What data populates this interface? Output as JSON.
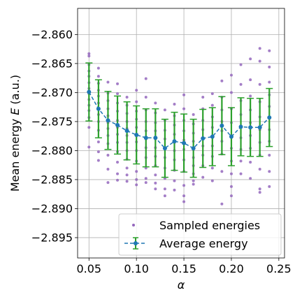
{
  "chart_data": {
    "type": "scatter",
    "title": "",
    "xlabel": "α",
    "ylabel_prefix": "Mean energy ",
    "ylabel_var": "E",
    "ylabel_suffix": " (a.u.)",
    "xlim": [
      0.038,
      0.256
    ],
    "ylim": [
      -2.8985,
      -2.8555
    ],
    "xticks": [
      0.05,
      0.1,
      0.15,
      0.2,
      0.25
    ],
    "xtick_labels": [
      "0.05",
      "0.10",
      "0.15",
      "0.20",
      "0.25"
    ],
    "yticks": [
      -2.895,
      -2.89,
      -2.885,
      -2.88,
      -2.875,
      -2.87,
      -2.865,
      -2.86
    ],
    "ytick_labels": [
      "−2.895",
      "−2.890",
      "−2.885",
      "−2.880",
      "−2.875",
      "−2.870",
      "−2.865",
      "−2.860"
    ],
    "grid": true,
    "legend": {
      "position": "lower-right",
      "entries": [
        "Sampled energies",
        "Average energy"
      ]
    },
    "colors": {
      "scatter": "#9467bd",
      "line": "#1f77b4",
      "errorbar": "#2ca02c"
    },
    "series": [
      {
        "name": "Average energy",
        "kind": "line-errorbar",
        "x": [
          0.05,
          0.06,
          0.07,
          0.08,
          0.09,
          0.1,
          0.11,
          0.12,
          0.13,
          0.14,
          0.15,
          0.16,
          0.17,
          0.18,
          0.19,
          0.2,
          0.21,
          0.22,
          0.23,
          0.24
        ],
        "y": [
          -2.8699,
          -2.8728,
          -2.8748,
          -2.8756,
          -2.8766,
          -2.8773,
          -2.8778,
          -2.8778,
          -2.8796,
          -2.8784,
          -2.8787,
          -2.8796,
          -2.8779,
          -2.8776,
          -2.8757,
          -2.8776,
          -2.8759,
          -2.876,
          -2.876,
          -2.8743
        ],
        "yerr": [
          0.005,
          0.005,
          0.005,
          0.005,
          0.005,
          0.005,
          0.005,
          0.005,
          0.005,
          0.005,
          0.005,
          0.005,
          0.005,
          0.005,
          0.005,
          0.005,
          0.005,
          0.005,
          0.005,
          0.005
        ]
      },
      {
        "name": "Sampled energies",
        "kind": "scatter",
        "groups": [
          {
            "x": 0.05,
            "y": [
              -2.8633,
              -2.8637,
              -2.8652,
              -2.8663,
              -2.8672,
              -2.8683,
              -2.8693,
              -2.8702,
              -2.8712,
              -2.8722,
              -2.8731,
              -2.8743,
              -2.876,
              -2.8794
            ]
          },
          {
            "x": 0.06,
            "y": [
              -2.8658,
              -2.8672,
              -2.8684,
              -2.8696,
              -2.8706,
              -2.8718,
              -2.8728,
              -2.8738,
              -2.875,
              -2.8765,
              -2.8785,
              -2.8802,
              -2.8817
            ]
          },
          {
            "x": 0.07,
            "y": [
              -2.8682,
              -2.8701,
              -2.8714,
              -2.8728,
              -2.874,
              -2.8752,
              -2.8762,
              -2.8774,
              -2.8788,
              -2.8808,
              -2.8832,
              -2.8855
            ]
          },
          {
            "x": 0.08,
            "y": [
              -2.8685,
              -2.8702,
              -2.8718,
              -2.8732,
              -2.8748,
              -2.876,
              -2.8772,
              -2.8786,
              -2.8802,
              -2.882,
              -2.884,
              -2.8851
            ]
          },
          {
            "x": 0.09,
            "y": [
              -2.8708,
              -2.8722,
              -2.8736,
              -2.875,
              -2.8762,
              -2.8774,
              -2.8786,
              -2.88,
              -2.8815,
              -2.883,
              -2.8842,
              -2.8853
            ]
          },
          {
            "x": 0.1,
            "y": [
              -2.8696,
              -2.8716,
              -2.8732,
              -2.8746,
              -2.876,
              -2.8772,
              -2.8785,
              -2.88,
              -2.8818,
              -2.8836,
              -2.885,
              -2.8859
            ]
          },
          {
            "x": 0.11,
            "y": [
              -2.8676,
              -2.8708,
              -2.873,
              -2.875,
              -2.8766,
              -2.878,
              -2.8795,
              -2.8812,
              -2.883,
              -2.8848,
              -2.8855
            ]
          },
          {
            "x": 0.12,
            "y": [
              -2.8718,
              -2.8735,
              -2.8752,
              -2.8766,
              -2.878,
              -2.8795,
              -2.881,
              -2.8826,
              -2.8842,
              -2.8856,
              -2.8866
            ]
          },
          {
            "x": 0.13,
            "y": [
              -2.873,
              -2.8748,
              -2.8765,
              -2.878,
              -2.8795,
              -2.8812,
              -2.883,
              -2.8848,
              -2.8866,
              -2.8878
            ]
          },
          {
            "x": 0.14,
            "y": [
              -2.872,
              -2.874,
              -2.8756,
              -2.8772,
              -2.8786,
              -2.88,
              -2.8816,
              -2.8834,
              -2.8852,
              -2.8868
            ]
          },
          {
            "x": 0.15,
            "y": [
              -2.8704,
              -2.8728,
              -2.8748,
              -2.8766,
              -2.8782,
              -2.8798,
              -2.8816,
              -2.8836,
              -2.886,
              -2.8878,
              -2.8888
            ]
          },
          {
            "x": 0.16,
            "y": [
              -2.8738,
              -2.8754,
              -2.877,
              -2.8784,
              -2.8798,
              -2.8812,
              -2.8826,
              -2.884,
              -2.8852,
              -2.8858
            ]
          },
          {
            "x": 0.17,
            "y": [
              -2.8708,
              -2.8728,
              -2.8748,
              -2.8764,
              -2.8778,
              -2.8792,
              -2.8808,
              -2.8826,
              -2.8846
            ]
          },
          {
            "x": 0.18,
            "y": [
              -2.8702,
              -2.8722,
              -2.8742,
              -2.876,
              -2.8776,
              -2.8792,
              -2.881,
              -2.883,
              -2.8852
            ]
          },
          {
            "x": 0.19,
            "y": [
              -2.868,
              -2.8708,
              -2.873,
              -2.875,
              -2.8766,
              -2.8784,
              -2.8806,
              -2.8836,
              -2.8892
            ]
          },
          {
            "x": 0.2,
            "y": [
              -2.867,
              -2.87,
              -2.8728,
              -2.8752,
              -2.8774,
              -2.8796,
              -2.8818,
              -2.884,
              -2.8862,
              -2.8878
            ]
          },
          {
            "x": 0.21,
            "y": [
              -2.8652,
              -2.8686,
              -2.8714,
              -2.8738,
              -2.8758,
              -2.8778,
              -2.8798,
              -2.8818,
              -2.884
            ]
          },
          {
            "x": 0.22,
            "y": [
              -2.8642,
              -2.8678,
              -2.8706,
              -2.873,
              -2.8752,
              -2.8774,
              -2.8796,
              -2.882,
              -2.8848
            ]
          },
          {
            "x": 0.23,
            "y": [
              -2.8624,
              -2.8646,
              -2.8686,
              -2.8716,
              -2.8742,
              -2.8764,
              -2.8786,
              -2.8808,
              -2.8832,
              -2.8866,
              -2.8872
            ]
          },
          {
            "x": 0.24,
            "y": [
              -2.8628,
              -2.8656,
              -2.8682,
              -2.8704,
              -2.8724,
              -2.8744,
              -2.8764,
              -2.8784,
              -2.8808,
              -2.8836,
              -2.8862
            ]
          }
        ]
      }
    ]
  }
}
